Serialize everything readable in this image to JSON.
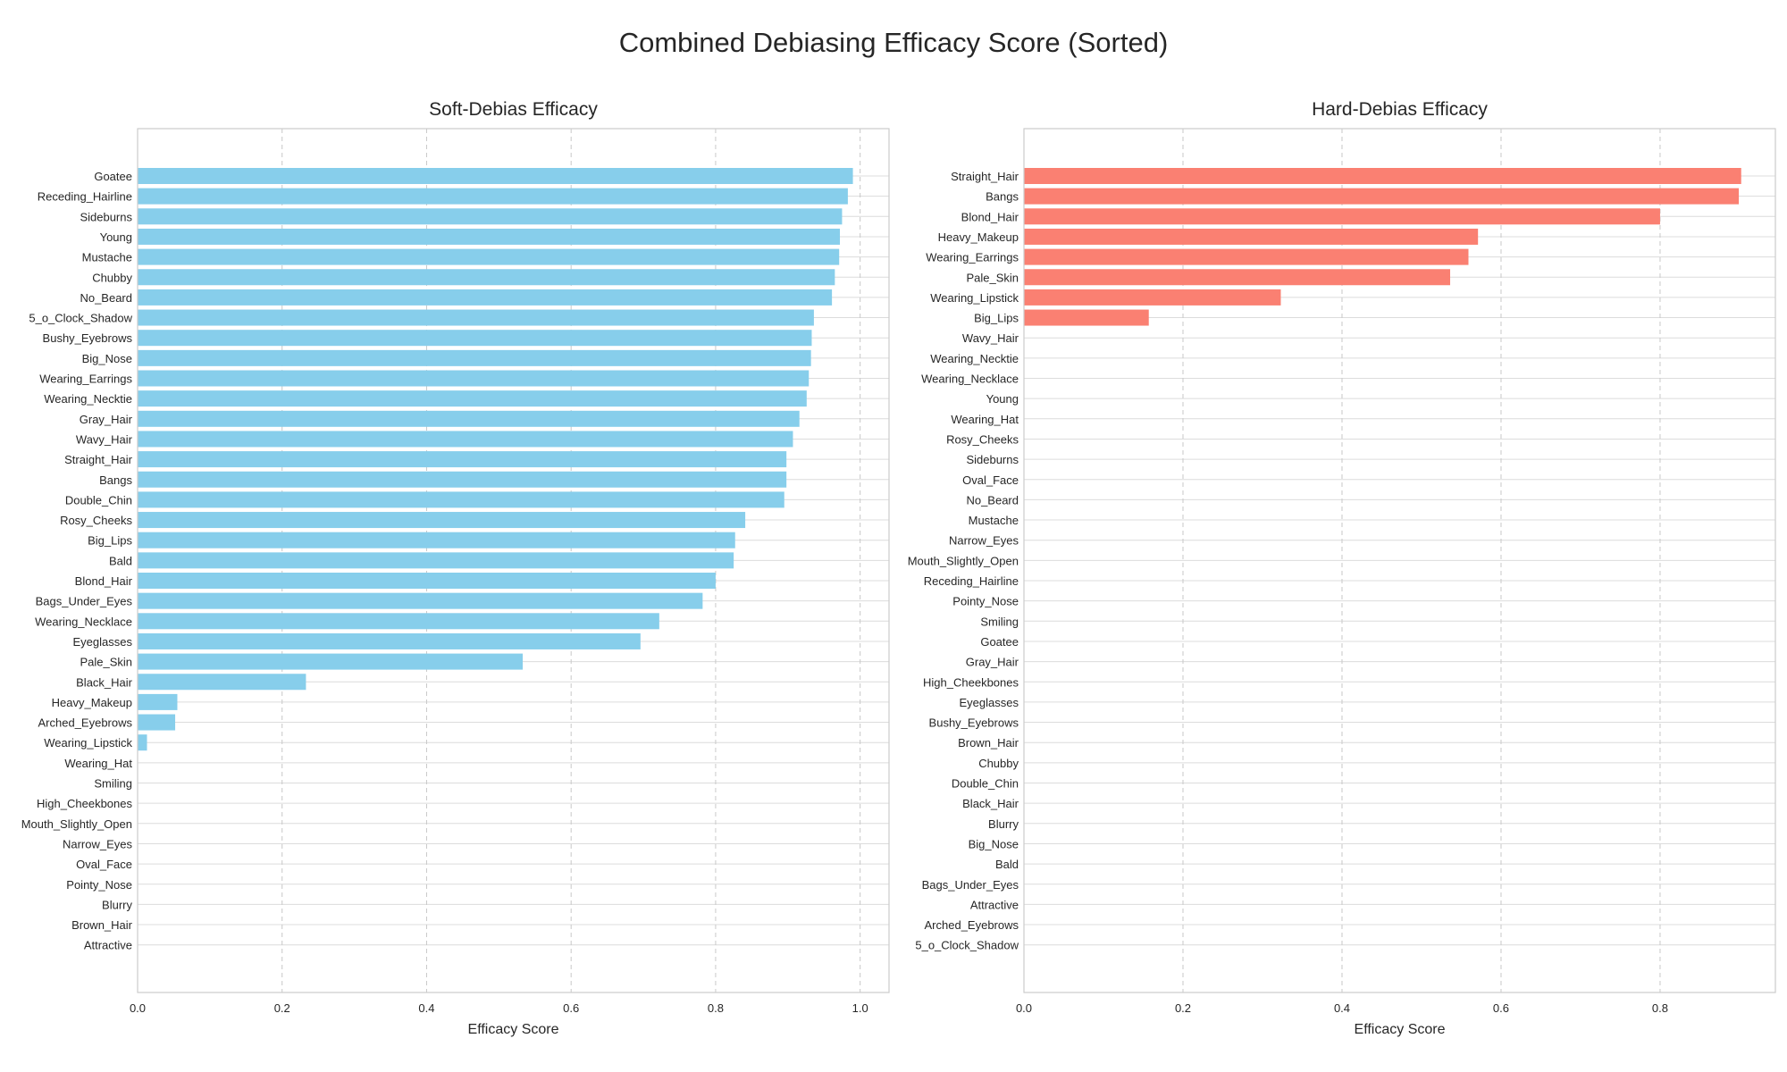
{
  "figure": {
    "title": "Combined Debiasing Efficacy Score (Sorted)"
  },
  "chart_data": [
    {
      "type": "bar",
      "orientation": "horizontal",
      "title": "Soft-Debias Efficacy",
      "xlabel": "Efficacy Score",
      "ylabel": "",
      "xlim": [
        0,
        1.04
      ],
      "xticks": [
        "0.0",
        "0.2",
        "0.4",
        "0.6",
        "0.8",
        "1.0"
      ],
      "grid": true,
      "color": "#87ceeb",
      "categories": [
        "Goatee",
        "Receding_Hairline",
        "Sideburns",
        "Young",
        "Mustache",
        "Chubby",
        "No_Beard",
        "5_o_Clock_Shadow",
        "Bushy_Eyebrows",
        "Big_Nose",
        "Wearing_Earrings",
        "Wearing_Necktie",
        "Gray_Hair",
        "Wavy_Hair",
        "Straight_Hair",
        "Bangs",
        "Double_Chin",
        "Rosy_Cheeks",
        "Big_Lips",
        "Bald",
        "Blond_Hair",
        "Bags_Under_Eyes",
        "Wearing_Necklace",
        "Eyeglasses",
        "Pale_Skin",
        "Black_Hair",
        "Heavy_Makeup",
        "Arched_Eyebrows",
        "Wearing_Lipstick",
        "Wearing_Hat",
        "Smiling",
        "High_Cheekbones",
        "Mouth_Slightly_Open",
        "Narrow_Eyes",
        "Oval_Face",
        "Pointy_Nose",
        "Blurry",
        "Brown_Hair",
        "Attractive"
      ],
      "values": [
        0.99,
        0.983,
        0.975,
        0.972,
        0.971,
        0.965,
        0.961,
        0.936,
        0.933,
        0.932,
        0.929,
        0.926,
        0.916,
        0.907,
        0.898,
        0.898,
        0.895,
        0.841,
        0.827,
        0.825,
        0.8,
        0.782,
        0.722,
        0.696,
        0.533,
        0.233,
        0.055,
        0.052,
        0.013,
        0,
        0,
        0,
        0,
        0,
        0,
        0,
        0,
        0,
        0
      ]
    },
    {
      "type": "bar",
      "orientation": "horizontal",
      "title": "Hard-Debias Efficacy",
      "xlabel": "Efficacy Score",
      "ylabel": "",
      "xlim": [
        0,
        0.945
      ],
      "xticks": [
        "0.0",
        "0.2",
        "0.4",
        "0.6",
        "0.8"
      ],
      "grid": true,
      "color": "#fa8072",
      "categories": [
        "Straight_Hair",
        "Bangs",
        "Blond_Hair",
        "Heavy_Makeup",
        "Wearing_Earrings",
        "Pale_Skin",
        "Wearing_Lipstick",
        "Big_Lips",
        "Wavy_Hair",
        "Wearing_Necktie",
        "Wearing_Necklace",
        "Young",
        "Wearing_Hat",
        "Rosy_Cheeks",
        "Sideburns",
        "Oval_Face",
        "No_Beard",
        "Mustache",
        "Narrow_Eyes",
        "Mouth_Slightly_Open",
        "Receding_Hairline",
        "Pointy_Nose",
        "Smiling",
        "Goatee",
        "Gray_Hair",
        "High_Cheekbones",
        "Eyeglasses",
        "Bushy_Eyebrows",
        "Brown_Hair",
        "Chubby",
        "Double_Chin",
        "Black_Hair",
        "Blurry",
        "Big_Nose",
        "Bald",
        "Bags_Under_Eyes",
        "Attractive",
        "Arched_Eyebrows",
        "5_o_Clock_Shadow"
      ],
      "values": [
        0.902,
        0.899,
        0.8,
        0.571,
        0.559,
        0.536,
        0.323,
        0.157,
        0,
        0,
        0,
        0,
        0,
        0,
        0,
        0,
        0,
        0,
        0,
        0,
        0,
        0,
        0,
        0,
        0,
        0,
        0,
        0,
        0,
        0,
        0,
        0,
        0,
        0,
        0,
        0,
        0,
        0,
        0
      ]
    }
  ]
}
